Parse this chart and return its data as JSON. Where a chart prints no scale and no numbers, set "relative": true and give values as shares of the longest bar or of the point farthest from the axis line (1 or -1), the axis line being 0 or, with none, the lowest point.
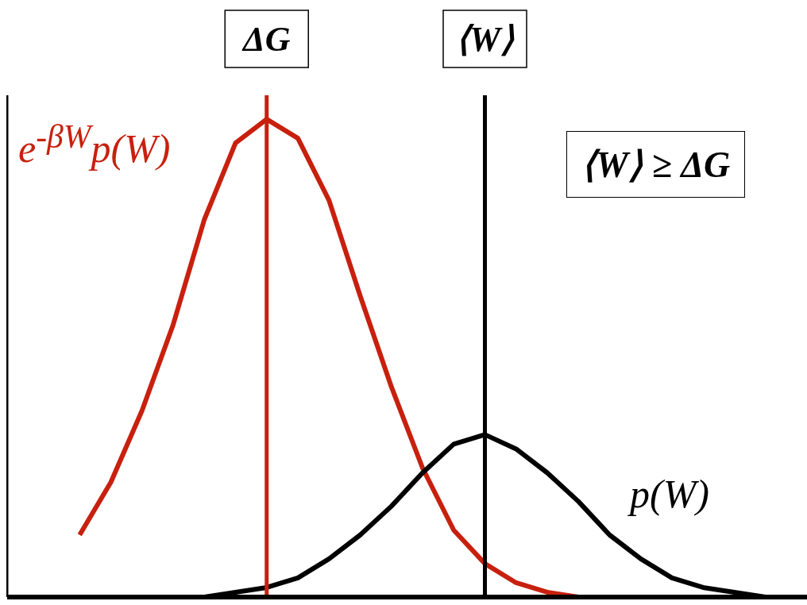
{
  "chart_data": {
    "type": "line",
    "relative": true,
    "categories": [
      null,
      null,
      null,
      null,
      null,
      null,
      null,
      null,
      null,
      null,
      null,
      null,
      null,
      null,
      null,
      null,
      null,
      null,
      null,
      null,
      null,
      null,
      null,
      null,
      null
    ],
    "series": [
      {
        "name": "e$^{-βW}$p(W)",
        "color": "#c8200e",
        "values": [
          null,
          0.13,
          0.24,
          0.39,
          0.57,
          0.79,
          0.95,
          1,
          0.96,
          0.83,
          0.63,
          0.44,
          0.27,
          0.14,
          0.07,
          0.03,
          0.01,
          0,
          null,
          null,
          null,
          null,
          null,
          null,
          null
        ]
      },
      {
        "name": "p(W)",
        "color": "#000000",
        "values": [
          null,
          null,
          null,
          null,
          null,
          0,
          0.01,
          0.02,
          0.04,
          0.08,
          0.13,
          0.19,
          0.26,
          0.32,
          0.34,
          0.31,
          0.26,
          0.2,
          0.13,
          0.08,
          0.04,
          0.02,
          0.01,
          0,
          null
        ]
      }
    ],
    "annotations": [
      "ΔG",
      "⟨W⟩",
      "⟨W⟩ ≥ ΔG"
    ],
    "marker": "none",
    "line_style": "solid"
  }
}
